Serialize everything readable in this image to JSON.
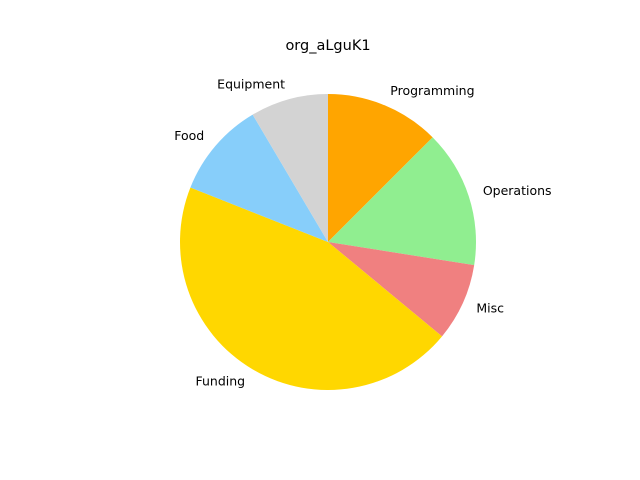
{
  "chart_data": {
    "type": "pie",
    "title": "org_aLguK1",
    "start_angle": 90,
    "direction": "clockwise",
    "slices": [
      {
        "label": "Programming",
        "value": 12.5,
        "color": "#FFA500"
      },
      {
        "label": "Operations",
        "value": 15.0,
        "color": "#90EE90"
      },
      {
        "label": "Misc",
        "value": 8.5,
        "color": "#F08080"
      },
      {
        "label": "Funding",
        "value": 45.0,
        "color": "#FFD700"
      },
      {
        "label": "Food",
        "value": 10.5,
        "color": "#87CEFA"
      },
      {
        "label": "Equipment",
        "value": 8.5,
        "color": "#D3D3D3"
      }
    ]
  }
}
